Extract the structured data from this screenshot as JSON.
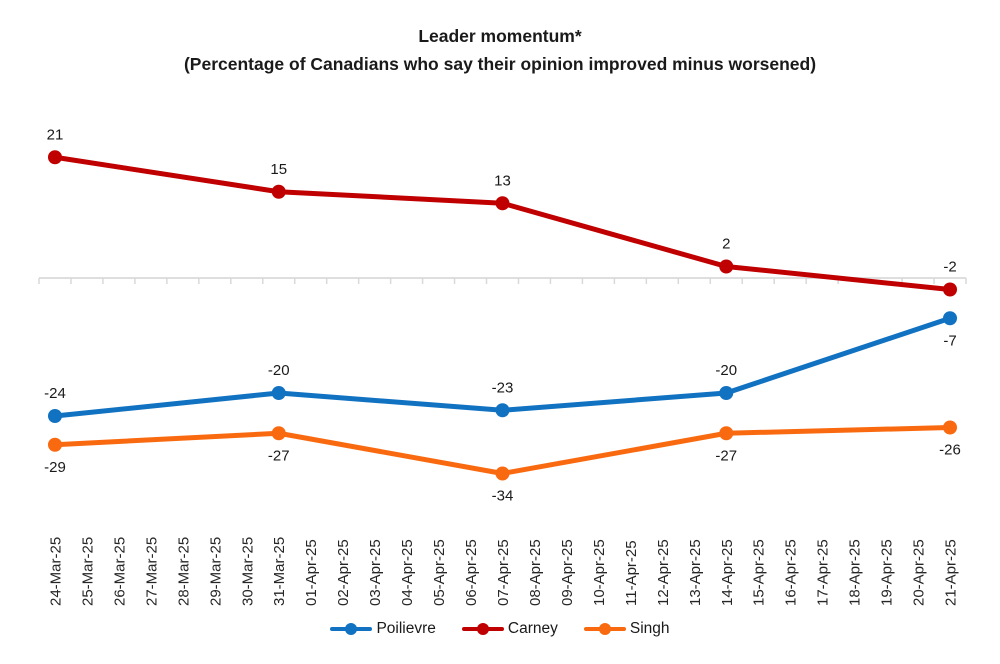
{
  "title": "Leader momentum*",
  "subtitle": "(Percentage of Canadians who say their opinion improved minus worsened)",
  "chart_data": {
    "type": "line",
    "x": [
      "24-Mar-25",
      "25-Mar-25",
      "26-Mar-25",
      "27-Mar-25",
      "28-Mar-25",
      "29-Mar-25",
      "30-Mar-25",
      "31-Mar-25",
      "01-Apr-25",
      "02-Apr-25",
      "03-Apr-25",
      "04-Apr-25",
      "05-Apr-25",
      "06-Apr-25",
      "07-Apr-25",
      "08-Apr-25",
      "09-Apr-25",
      "10-Apr-25",
      "11-Apr-25",
      "12-Apr-25",
      "13-Apr-25",
      "14-Apr-25",
      "15-Apr-25",
      "16-Apr-25",
      "17-Apr-25",
      "18-Apr-25",
      "19-Apr-25",
      "20-Apr-25",
      "21-Apr-25"
    ],
    "series": [
      {
        "name": "Poilievre",
        "color": "#1272C2",
        "points": [
          {
            "x": "24-Mar-25",
            "y": -24,
            "label": "-24",
            "label_pos": "above"
          },
          {
            "x": "31-Mar-25",
            "y": -20,
            "label": "-20",
            "label_pos": "above"
          },
          {
            "x": "07-Apr-25",
            "y": -23,
            "label": "-23",
            "label_pos": "above"
          },
          {
            "x": "14-Apr-25",
            "y": -20,
            "label": "-20",
            "label_pos": "above"
          },
          {
            "x": "21-Apr-25",
            "y": -7,
            "label": "-7",
            "label_pos": "below"
          }
        ]
      },
      {
        "name": "Carney",
        "color": "#C00000",
        "points": [
          {
            "x": "24-Mar-25",
            "y": 21,
            "label": "21",
            "label_pos": "above"
          },
          {
            "x": "31-Mar-25",
            "y": 15,
            "label": "15",
            "label_pos": "above"
          },
          {
            "x": "07-Apr-25",
            "y": 13,
            "label": "13",
            "label_pos": "above"
          },
          {
            "x": "14-Apr-25",
            "y": 2,
            "label": "2",
            "label_pos": "above"
          },
          {
            "x": "21-Apr-25",
            "y": -2,
            "label": "-2",
            "label_pos": "above"
          }
        ]
      },
      {
        "name": "Singh",
        "color": "#F96A10",
        "points": [
          {
            "x": "24-Mar-25",
            "y": -29,
            "label": "-29",
            "label_pos": "below"
          },
          {
            "x": "31-Mar-25",
            "y": -27,
            "label": "-27",
            "label_pos": "below"
          },
          {
            "x": "07-Apr-25",
            "y": -34,
            "label": "-34",
            "label_pos": "below"
          },
          {
            "x": "14-Apr-25",
            "y": -27,
            "label": "-27",
            "label_pos": "below"
          },
          {
            "x": "21-Apr-25",
            "y": -26,
            "label": "-26",
            "label_pos": "below"
          }
        ]
      }
    ],
    "axis": {
      "zero_line": true,
      "axis_color": "#D9D9D9",
      "ylim": [
        -40,
        30
      ],
      "gridlines": false,
      "y_axis_labels": false
    },
    "legend_position": "bottom"
  }
}
